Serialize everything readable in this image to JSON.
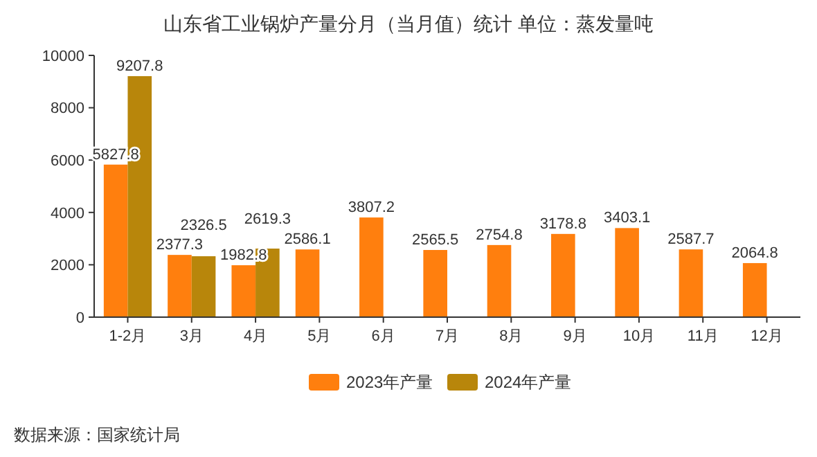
{
  "chart_data": {
    "type": "bar",
    "title": "山东省工业锅炉产量分月（当月值）统计  单位：蒸发量吨",
    "categories": [
      "1-2月",
      "3月",
      "4月",
      "5月",
      "6月",
      "7月",
      "8月",
      "9月",
      "10月",
      "11月",
      "12月"
    ],
    "series": [
      {
        "name": "2023年产量",
        "color": "#ff7f0e",
        "values": [
          5827.8,
          2377.3,
          1982.8,
          2586.1,
          3807.2,
          2565.5,
          2754.8,
          3178.8,
          3403.1,
          2587.7,
          2064.8
        ]
      },
      {
        "name": "2024年产量",
        "color": "#b8860b",
        "values": [
          9207.8,
          2326.5,
          2619.3,
          null,
          null,
          null,
          null,
          null,
          null,
          null,
          null
        ]
      }
    ],
    "ylim": [
      0,
      10000
    ],
    "yticks": [
      0,
      2000,
      4000,
      6000,
      8000,
      10000
    ],
    "grid": false,
    "legend": "bottom",
    "data_labels": true,
    "annotations": [
      "数据来源：国家统计局"
    ]
  }
}
